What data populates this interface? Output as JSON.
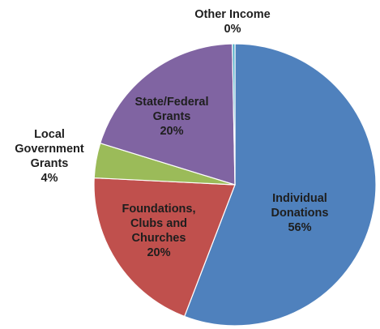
{
  "chart_data": {
    "type": "pie",
    "title": "",
    "start": "top",
    "direction": "clockwise",
    "slices": [
      {
        "label": [
          "Individual",
          "Donations"
        ],
        "percent_label": "56%",
        "value": 56,
        "color": "#4f81bd"
      },
      {
        "label": [
          "Foundations,",
          "Clubs and",
          "Churches"
        ],
        "percent_label": "20%",
        "value": 20,
        "color": "#c0504d"
      },
      {
        "label": [
          "Local",
          "Government",
          "Grants"
        ],
        "percent_label": "4%",
        "value": 4,
        "color": "#9bbb59"
      },
      {
        "label": [
          "State/Federal",
          "Grants"
        ],
        "percent_label": "20%",
        "value": 20,
        "color": "#8064a2"
      },
      {
        "label": [
          "Other Income"
        ],
        "percent_label": "0%",
        "value": 0.3,
        "color": "#4bacc6"
      }
    ]
  }
}
